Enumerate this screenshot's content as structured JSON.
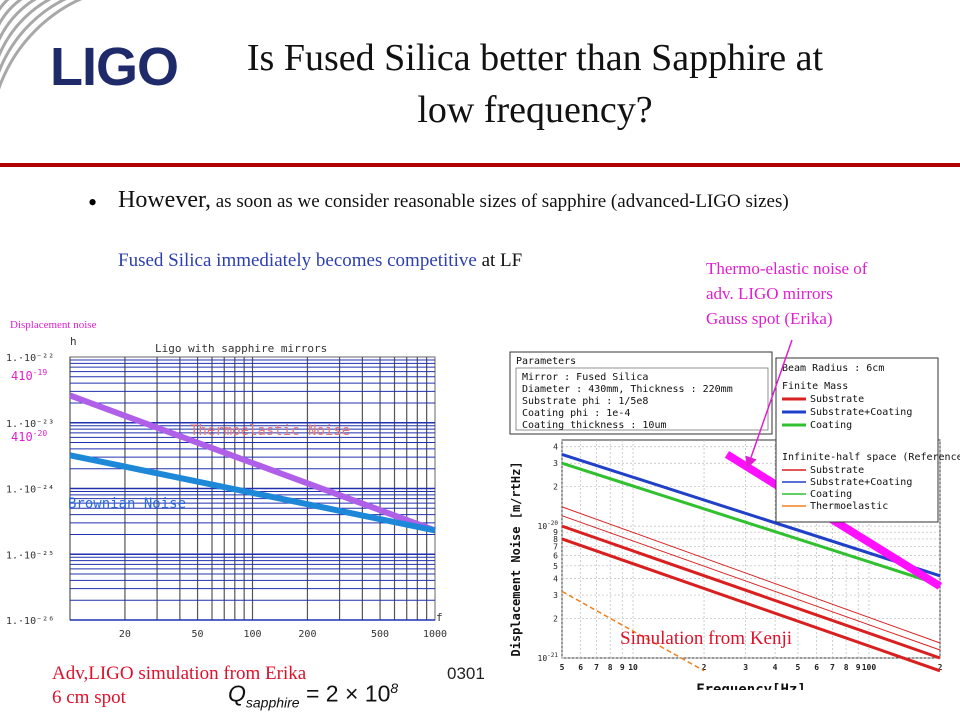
{
  "logo": {
    "text": "LIGO"
  },
  "title": {
    "line1": "Is Fused Silica better than Sapphire at",
    "line2": "low frequency?"
  },
  "bullet": {
    "lead": "However,",
    "rest": " as soon as we consider reasonable sizes of sapphire (advanced-LIGO sizes)",
    "fs_blue": "Fused Silica immediately becomes competitive",
    "fs_black": " at LF"
  },
  "annotations": {
    "thermo_line1": "Thermo-elastic noise of",
    "thermo_line2": "adv. LIGO mirrors",
    "thermo_line3": "Gauss spot (Erika)",
    "displacement_noise": "Displacement noise"
  },
  "captions": {
    "erika_line1": "Adv,LIGO simulation from Erika",
    "erika_line2": "6 cm spot",
    "q_formula": "Q_sapphire = 2 × 10^8",
    "page_number": "0301",
    "kenji": "Simulation from Kenji"
  },
  "colors": {
    "title_rule": "#b30000",
    "pink": "#e020d0",
    "blue_text": "#2c3fb0",
    "red_text": "#e0102a"
  },
  "chart_data": [
    {
      "type": "line",
      "title": "Ligo with sapphire mirrors",
      "xlabel": "f",
      "ylabel": "h",
      "x_ticks": [
        "20",
        "50",
        "100",
        "200",
        "500",
        "1000"
      ],
      "y_ticks": [
        "1.·10⁻²²",
        "1.·10⁻²³",
        "1.·10⁻²⁴",
        "1.·10⁻²⁵",
        "1.·10⁻²⁶"
      ],
      "side_labels": [
        {
          "base": "410",
          "exp": "-19"
        },
        {
          "base": "410",
          "exp": "-20"
        }
      ],
      "xscale": "log",
      "yscale": "log",
      "xlim": [
        10,
        1000
      ],
      "ylim": [
        1e-26,
        1e-22
      ],
      "grid": true,
      "series": [
        {
          "name": "Thermoelastic Noise",
          "color": "#b060e8",
          "x": [
            10,
            1000
          ],
          "y": [
            2.6e-23,
            2.3e-25
          ]
        },
        {
          "name": "Brownian Noise",
          "color": "#1e88d8",
          "x": [
            10,
            1000
          ],
          "y": [
            3.2e-24,
            2.3e-25
          ]
        }
      ]
    },
    {
      "type": "line",
      "xlabel": "Frequency[Hz]",
      "ylabel": "Displacement Noise [m/rtHz]",
      "x_ticks": [
        "5",
        "6",
        "7",
        "8",
        "9",
        "10",
        "2",
        "3",
        "4",
        "5",
        "6",
        "7",
        "8",
        "9",
        "100",
        "2"
      ],
      "y_ticks": [
        "4",
        "3",
        "2",
        "10^-20",
        "9",
        "8",
        "7",
        "6",
        "5",
        "4",
        "3",
        "2",
        "10^-21"
      ],
      "xscale": "log",
      "yscale": "log",
      "xlim": [
        5,
        200
      ],
      "ylim": [
        1e-21,
        4.5e-20
      ],
      "grid": true,
      "parameters": {
        "header": "Parameters",
        "lines": [
          "Mirror : Fused Silica",
          "Diameter : 430mm, Thickness : 220mm",
          "Substrate phi : 1/5e8",
          "Coating phi : 1e-4",
          "Coating thickness : 10um"
        ]
      },
      "legend": {
        "beam_radius": "Beam Radius : 6cm",
        "group1": "Finite Mass",
        "group2": "Infinite-half space (Reference)",
        "entries1": [
          {
            "label": "Substrate",
            "color": "#d82020"
          },
          {
            "label": "Substrate+Coating",
            "color": "#2040c8"
          },
          {
            "label": "Coating",
            "color": "#30c030"
          }
        ],
        "entries2": [
          {
            "label": "Substrate",
            "color": "#d82020"
          },
          {
            "label": "Substrate+Coating",
            "color": "#2040c8"
          },
          {
            "label": "Coating",
            "color": "#30c030"
          },
          {
            "label": "Thermoelastic",
            "color": "#f08020"
          }
        ]
      },
      "series": [
        {
          "name": "Finite Mass Substrate+Coating",
          "color": "#2040c8",
          "x": [
            5,
            200
          ],
          "y": [
            3.5e-20,
            4.2e-21
          ]
        },
        {
          "name": "Finite Mass Coating",
          "color": "#30c030",
          "x": [
            5,
            200
          ],
          "y": [
            3e-20,
            3.6e-21
          ]
        },
        {
          "name": "Finite Mass Substrate",
          "color": "#d82020",
          "x": [
            5,
            200
          ],
          "y": [
            1e-20,
            1e-21
          ]
        },
        {
          "name": "Infinite-half space Substrate",
          "color": "#d82020",
          "x": [
            5,
            200
          ],
          "y": [
            8e-21,
            8e-22
          ]
        },
        {
          "name": "Infinite-half space Thermoelastic",
          "color": "#f08020",
          "x": [
            5,
            20
          ],
          "y": [
            3.2e-21,
            8e-22
          ]
        },
        {
          "name": "Thermo-elastic noise of adv. LIGO mirrors",
          "color": "#ff10ff",
          "x": [
            25,
            200
          ],
          "y": [
            3.5e-20,
            3.5e-21
          ]
        }
      ]
    }
  ]
}
